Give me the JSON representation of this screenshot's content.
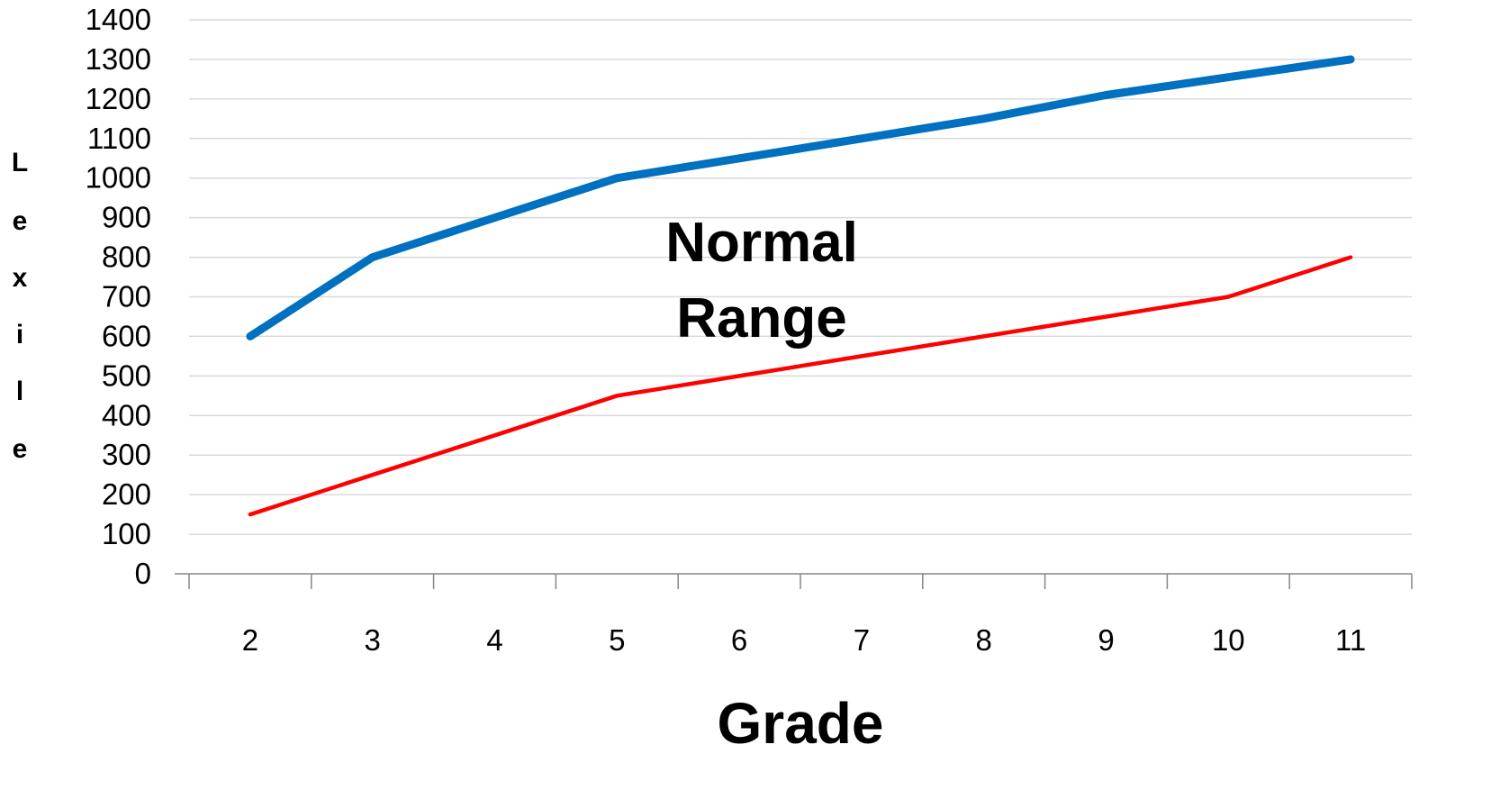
{
  "chart_data": {
    "type": "line",
    "xlabel": "Grade",
    "ylabel": "Lexile",
    "categories": [
      "2",
      "3",
      "4",
      "5",
      "6",
      "7",
      "8",
      "9",
      "10",
      "11"
    ],
    "yticks": [
      "0",
      "100",
      "200",
      "300",
      "400",
      "500",
      "600",
      "700",
      "800",
      "900",
      "1000",
      "1100",
      "1200",
      "1300",
      "1400"
    ],
    "ylim": [
      0,
      1400
    ],
    "grid": "horizontal",
    "series": [
      {
        "values": [
          600,
          800,
          900,
          1000,
          1050,
          1100,
          1150,
          1210,
          1255,
          1300
        ],
        "color": "#0070C0"
      },
      {
        "values": [
          150,
          250,
          350,
          450,
          500,
          550,
          600,
          650,
          700,
          800
        ],
        "color": "#FF0000"
      }
    ],
    "annotations": [
      {
        "lines": [
          "Normal",
          "Range"
        ]
      }
    ]
  }
}
